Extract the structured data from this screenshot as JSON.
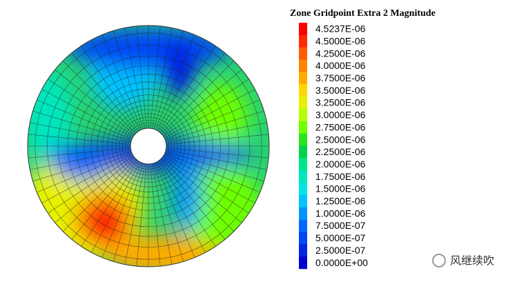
{
  "legend": {
    "title": "Zone Gridpoint Extra 2 Magnitude",
    "items": [
      {
        "label": "4.5237E-06",
        "color": "#ff0000"
      },
      {
        "label": "4.5000E-06",
        "color": "#ff2800"
      },
      {
        "label": "4.2500E-06",
        "color": "#ff5a00"
      },
      {
        "label": "4.0000E-06",
        "color": "#ff8200"
      },
      {
        "label": "3.7500E-06",
        "color": "#ffaa00"
      },
      {
        "label": "3.5000E-06",
        "color": "#ffd700"
      },
      {
        "label": "3.2500E-06",
        "color": "#e6f000"
      },
      {
        "label": "3.0000E-06",
        "color": "#b4ff00"
      },
      {
        "label": "2.7500E-06",
        "color": "#6eff00"
      },
      {
        "label": "2.5000E-06",
        "color": "#28e61e"
      },
      {
        "label": "2.2500E-06",
        "color": "#00d24b"
      },
      {
        "label": "2.0000E-06",
        "color": "#00e68c"
      },
      {
        "label": "1.7500E-06",
        "color": "#00e6be"
      },
      {
        "label": "1.5000E-06",
        "color": "#00e6e6"
      },
      {
        "label": "1.2500E-06",
        "color": "#00c3ff"
      },
      {
        "label": "1.0000E-06",
        "color": "#0096ff"
      },
      {
        "label": "7.5000E-07",
        "color": "#0069ff"
      },
      {
        "label": "5.0000E-07",
        "color": "#0046f5"
      },
      {
        "label": "2.5000E-07",
        "color": "#0023e6"
      },
      {
        "label": "0.0000E+00",
        "color": "#0000d2"
      }
    ]
  },
  "watermark": "风继续吹"
}
